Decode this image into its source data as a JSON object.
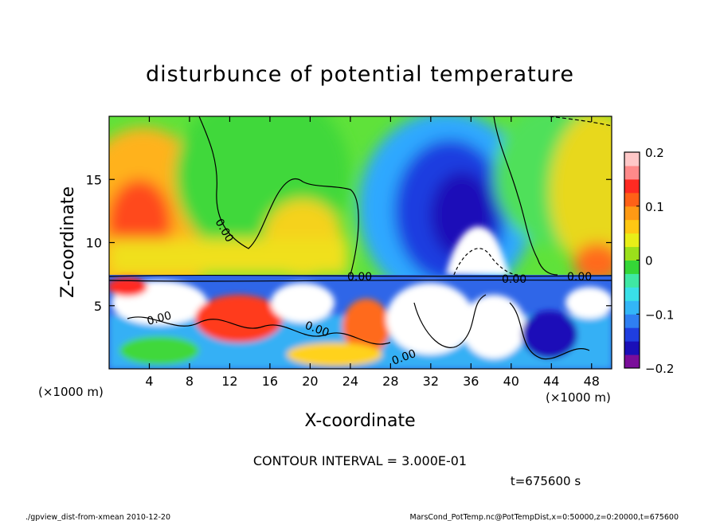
{
  "chart_data": {
    "type": "heatmap",
    "title": "disturbunce of potential temperature",
    "xlabel": "X-coordinate",
    "ylabel": "Z-coordinate",
    "x_unit_left": "(×1000 m)",
    "x_unit_right": "(×1000 m)",
    "xlim": [
      0,
      50
    ],
    "ylim": [
      0,
      20
    ],
    "x_ticks": [
      4,
      8,
      12,
      16,
      20,
      24,
      28,
      32,
      36,
      40,
      44,
      48
    ],
    "y_ticks": [
      5,
      10,
      15
    ],
    "colorbar": {
      "range": [
        -0.2,
        0.2
      ],
      "tick_values": [
        0.2,
        0.1,
        0,
        -0.1,
        -0.2
      ],
      "tick_labels": [
        "0.2",
        "0.1",
        "0",
        "−0.1",
        "−0.2"
      ]
    },
    "contour_labels": [
      "0.00",
      "0.00",
      "0.00",
      "0.00",
      "0.00",
      "0.00",
      "0.00"
    ],
    "contour_interval_text": "CONTOUR INTERVAL = 3.000E-01",
    "time_text": "t=675600 s",
    "footer_left": "./gpview_dist-from-xmean  2010-12-20",
    "footer_right": "MarsCond_PotTemp.nc@PotTempDist,x=0:50000,z=0:20000,t=675600",
    "palette": [
      "#7a0d9a",
      "#1a0fb8",
      "#1f3ee0",
      "#2f7ff2",
      "#33b6f7",
      "#39e0e8",
      "#3fe8a4",
      "#35d637",
      "#9be01b",
      "#e8ee18",
      "#ffc813",
      "#ff9a14",
      "#ff6117",
      "#ff2a22",
      "#ff8a8a",
      "#ffc8c8"
    ],
    "colors": {
      "background": "#ffffff",
      "contour": "#000000",
      "sponge_blob": "#ffffff"
    }
  }
}
